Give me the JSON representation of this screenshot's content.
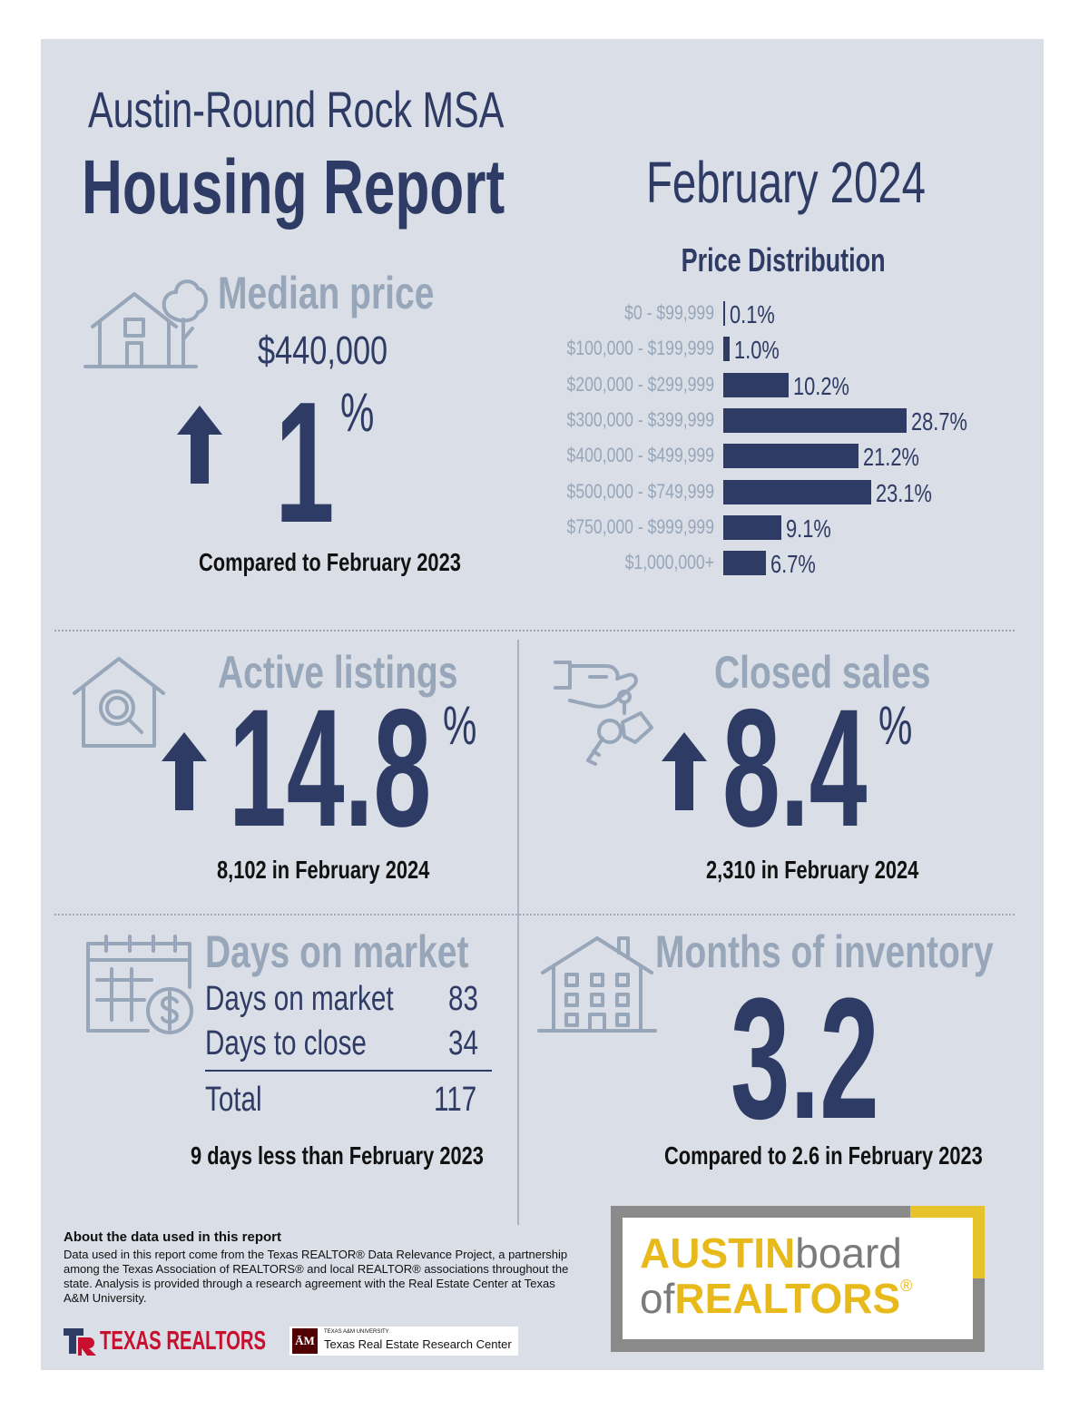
{
  "header": {
    "subtitle": "Austin-Round Rock MSA",
    "title": "Housing Report",
    "date": "February 2024"
  },
  "median_price": {
    "title": "Median price",
    "value": "$440,000",
    "change": "1",
    "percent_sign": "%",
    "caption": "Compared to February 2023"
  },
  "price_distribution": {
    "title": "Price Distribution"
  },
  "chart_data": {
    "type": "bar",
    "orientation": "horizontal",
    "title": "Price Distribution",
    "categories": [
      "$0 - $99,999",
      "$100,000 - $199,999",
      "$200,000 - $299,999",
      "$300,000 - $399,999",
      "$400,000 - $499,999",
      "$500,000 - $749,999",
      "$750,000 - $999,999",
      "$1,000,000+"
    ],
    "values": [
      0.1,
      1.0,
      10.2,
      28.7,
      21.2,
      23.1,
      9.1,
      6.7
    ],
    "value_labels": [
      "0.1%",
      "1.0%",
      "10.2%",
      "28.7%",
      "21.2%",
      "23.1%",
      "9.1%",
      "6.7%"
    ],
    "color": "#2e3b64"
  },
  "active_listings": {
    "title": "Active listings",
    "change": "14.8",
    "percent_sign": "%",
    "caption": "8,102 in February 2024"
  },
  "closed_sales": {
    "title": "Closed sales",
    "change": "8.4",
    "percent_sign": "%",
    "caption": "2,310 in February 2024"
  },
  "days_on_market": {
    "title": "Days on market",
    "rows": [
      {
        "label": "Days on market",
        "value": "83"
      },
      {
        "label": "Days to close",
        "value": "34"
      }
    ],
    "total_label": "Total",
    "total_value": "117",
    "caption": "9 days less than February 2023"
  },
  "months_inventory": {
    "title": "Months of inventory",
    "value": "3.2",
    "caption": "Compared to 2.6 in February 2023"
  },
  "about": {
    "heading": "About the data used in this report",
    "body": "Data used in this report come from the Texas REALTOR® Data Relevance Project, a partnership among the Texas Association of REALTORS® and local REALTOR® associations throughout the state. Analysis is provided through a research agreement with the Real Estate Center at Texas A&M University."
  },
  "logos": {
    "texas_realtors": "TEXAS REALTORS",
    "tamu_small": "TEXAS A&M UNIVERSITY",
    "tamu_center": "Texas Real Estate Research Center",
    "abor_austin": "AUSTIN",
    "abor_board": "board",
    "abor_of": "of",
    "abor_realtors": "REALTORS",
    "abor_reg": "®"
  },
  "colors": {
    "panel": "#dadee6",
    "navy": "#2e3b64",
    "muted": "#97a6b8",
    "gold": "#e8c22a",
    "gray_frame": "#8a8a8a"
  }
}
